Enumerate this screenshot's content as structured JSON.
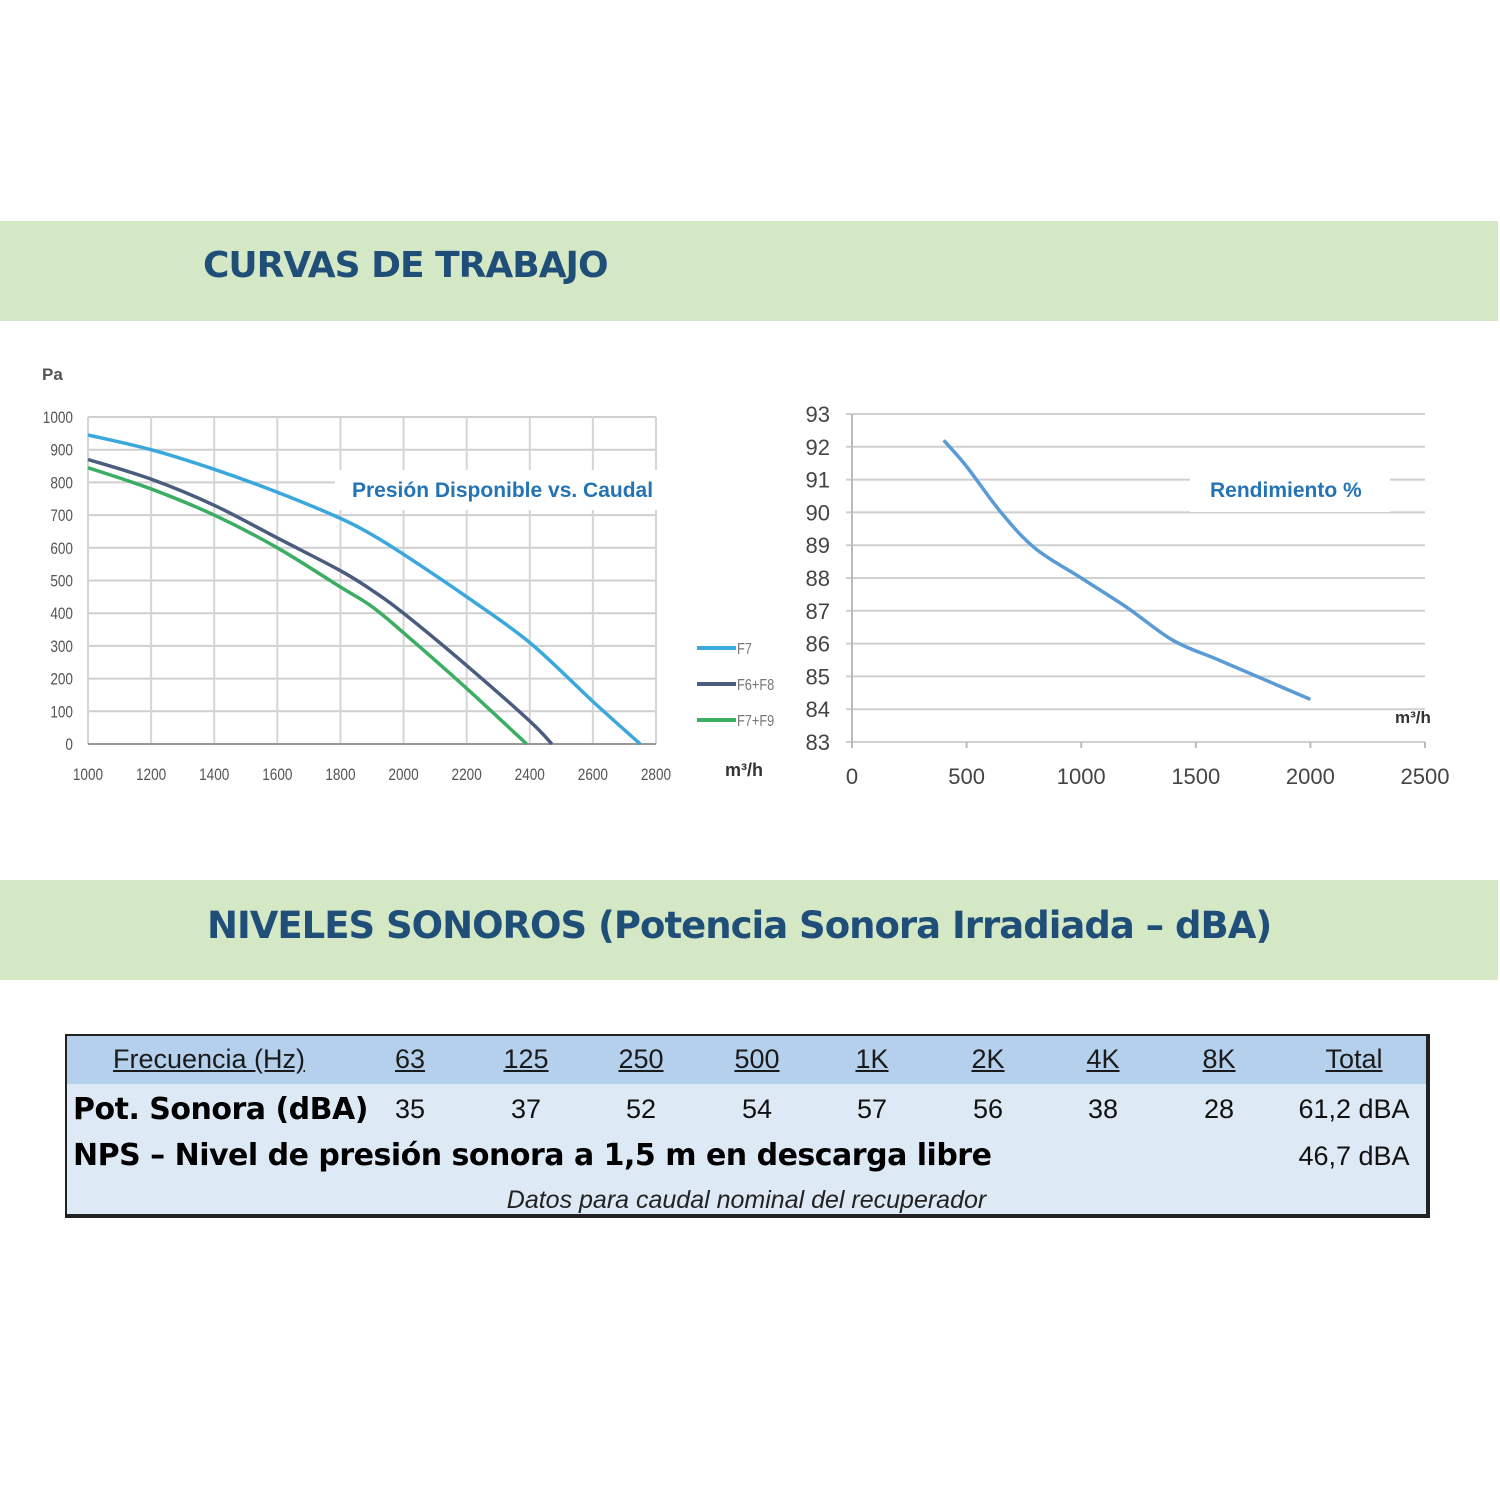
{
  "sections": {
    "curves_title": "CURVAS DE TRABAJO",
    "sound_title": "NIVELES SONOROS (Potencia Sonora Irradiada – dBA)"
  },
  "chart_data": [
    {
      "type": "line",
      "title": "Presión Disponible vs. Caudal",
      "xlabel": "m³/h",
      "ylabel": "Pa",
      "xlim": [
        1000,
        2800
      ],
      "ylim": [
        0,
        1000
      ],
      "xticks": [
        1000,
        1200,
        1400,
        1600,
        1800,
        2000,
        2200,
        2400,
        2600,
        2800
      ],
      "yticks": [
        0,
        100,
        200,
        300,
        400,
        500,
        600,
        700,
        800,
        900,
        1000
      ],
      "grid": true,
      "legend_placement": "right",
      "series": [
        {
          "name": "F7",
          "color": "#3aa8dc",
          "x": [
            1000,
            1200,
            1400,
            1600,
            1800,
            1900,
            2000,
            2200,
            2400,
            2600,
            2750
          ],
          "y": [
            945,
            900,
            840,
            770,
            690,
            640,
            580,
            450,
            310,
            130,
            0
          ]
        },
        {
          "name": "F6+F8",
          "color": "#4a5d7e",
          "x": [
            1000,
            1200,
            1400,
            1600,
            1800,
            1900,
            2000,
            2200,
            2400,
            2470
          ],
          "y": [
            870,
            810,
            730,
            630,
            530,
            470,
            400,
            240,
            70,
            0
          ]
        },
        {
          "name": "F7+F9",
          "color": "#3cae64",
          "x": [
            1000,
            1200,
            1400,
            1600,
            1800,
            1900,
            2000,
            2200,
            2390
          ],
          "y": [
            845,
            780,
            700,
            600,
            480,
            420,
            340,
            170,
            0
          ]
        }
      ]
    },
    {
      "type": "line",
      "title": "Rendimiento %",
      "xlabel": "m³/h",
      "ylabel": "",
      "xlim": [
        0,
        2500
      ],
      "ylim": [
        83,
        93
      ],
      "xticks": [
        0,
        500,
        1000,
        1500,
        2000,
        2500
      ],
      "yticks": [
        83,
        84,
        85,
        86,
        87,
        88,
        89,
        90,
        91,
        92,
        93
      ],
      "grid": true,
      "series": [
        {
          "name": "Rendimiento %",
          "color": "#5b9bd5",
          "x": [
            400,
            500,
            650,
            800,
            1000,
            1200,
            1400,
            1600,
            1800,
            2000
          ],
          "y": [
            92.2,
            91.4,
            90,
            88.9,
            88,
            87.1,
            86.1,
            85.5,
            84.9,
            84.3
          ]
        }
      ]
    }
  ],
  "table": {
    "header_label": "Frecuencia (Hz)",
    "frequencies": [
      "63",
      "125",
      "250",
      "500",
      "1K",
      "2K",
      "4K",
      "8K"
    ],
    "total_label": "Total",
    "row1_label": "Pot. Sonora (dBA)",
    "row1_values": [
      "35",
      "37",
      "52",
      "54",
      "57",
      "56",
      "38",
      "28"
    ],
    "row1_total": "61,2 dBA",
    "row2_label": "NPS – Nivel de presión sonora a 1,5 m en descarga libre",
    "row2_total": "46,7 dBA",
    "note": "Datos para caudal nominal del recuperador"
  }
}
